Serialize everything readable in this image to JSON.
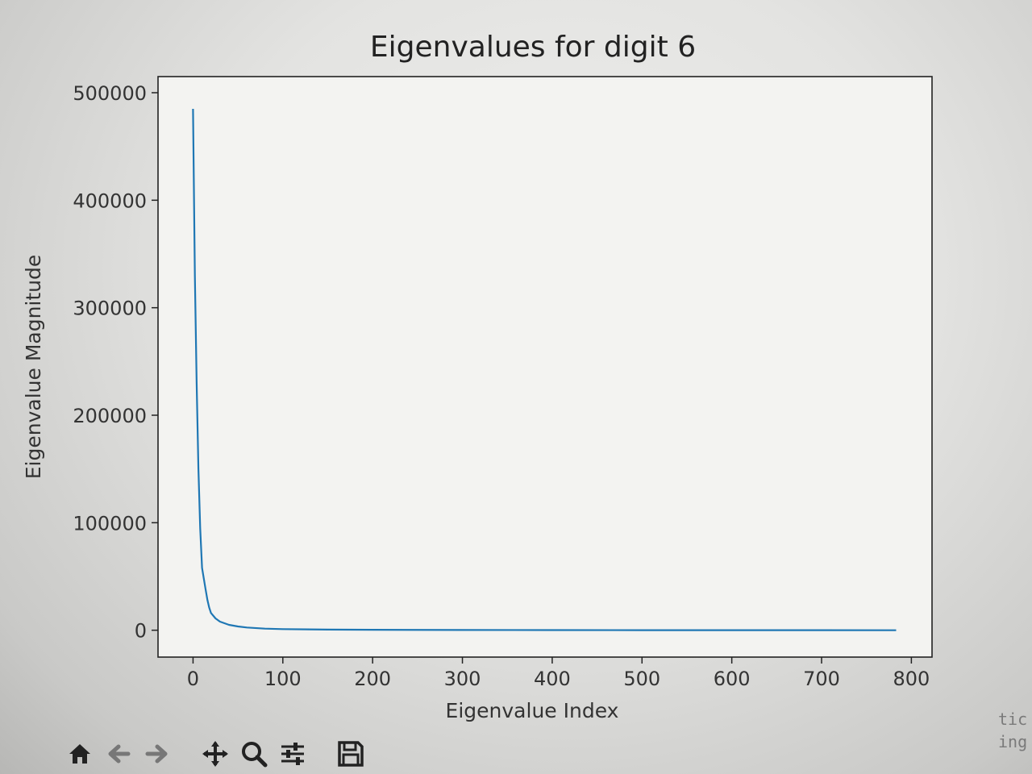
{
  "chart_data": {
    "type": "line",
    "title": "Eigenvalues for digit 6",
    "xlabel": "Eigenvalue Index",
    "ylabel": "Eigenvalue Magnitude",
    "xlim": [
      -39,
      823
    ],
    "ylim": [
      -25000,
      515000
    ],
    "xticks": [
      0,
      100,
      200,
      300,
      400,
      500,
      600,
      700,
      800
    ],
    "yticks": [
      0,
      100000,
      200000,
      300000,
      400000,
      500000
    ],
    "xtick_labels": [
      "0",
      "100",
      "200",
      "300",
      "400",
      "500",
      "600",
      "700",
      "800"
    ],
    "ytick_labels": [
      "0",
      "100000",
      "200000",
      "300000",
      "400000",
      "500000"
    ],
    "grid": false,
    "series": [
      {
        "color": "#1f77b4",
        "x": [
          0,
          2,
          4,
          6,
          8,
          10,
          12,
          14,
          16,
          18,
          20,
          25,
          30,
          40,
          50,
          60,
          80,
          100,
          150,
          200,
          300,
          400,
          500,
          600,
          700,
          783
        ],
        "values": [
          485000,
          330000,
          230000,
          150000,
          95000,
          58000,
          48000,
          38000,
          28000,
          21000,
          16000,
          11000,
          8000,
          5000,
          3500,
          2500,
          1500,
          1000,
          600,
          400,
          200,
          100,
          60,
          30,
          15,
          5
        ]
      }
    ]
  },
  "toolbar": {
    "icons": [
      "home-icon",
      "back-arrow-icon",
      "forward-arrow-icon",
      "pan-icon",
      "zoom-icon",
      "configure-subplots-icon",
      "save-icon"
    ]
  },
  "corner_text": [
    "tic",
    "ing"
  ]
}
